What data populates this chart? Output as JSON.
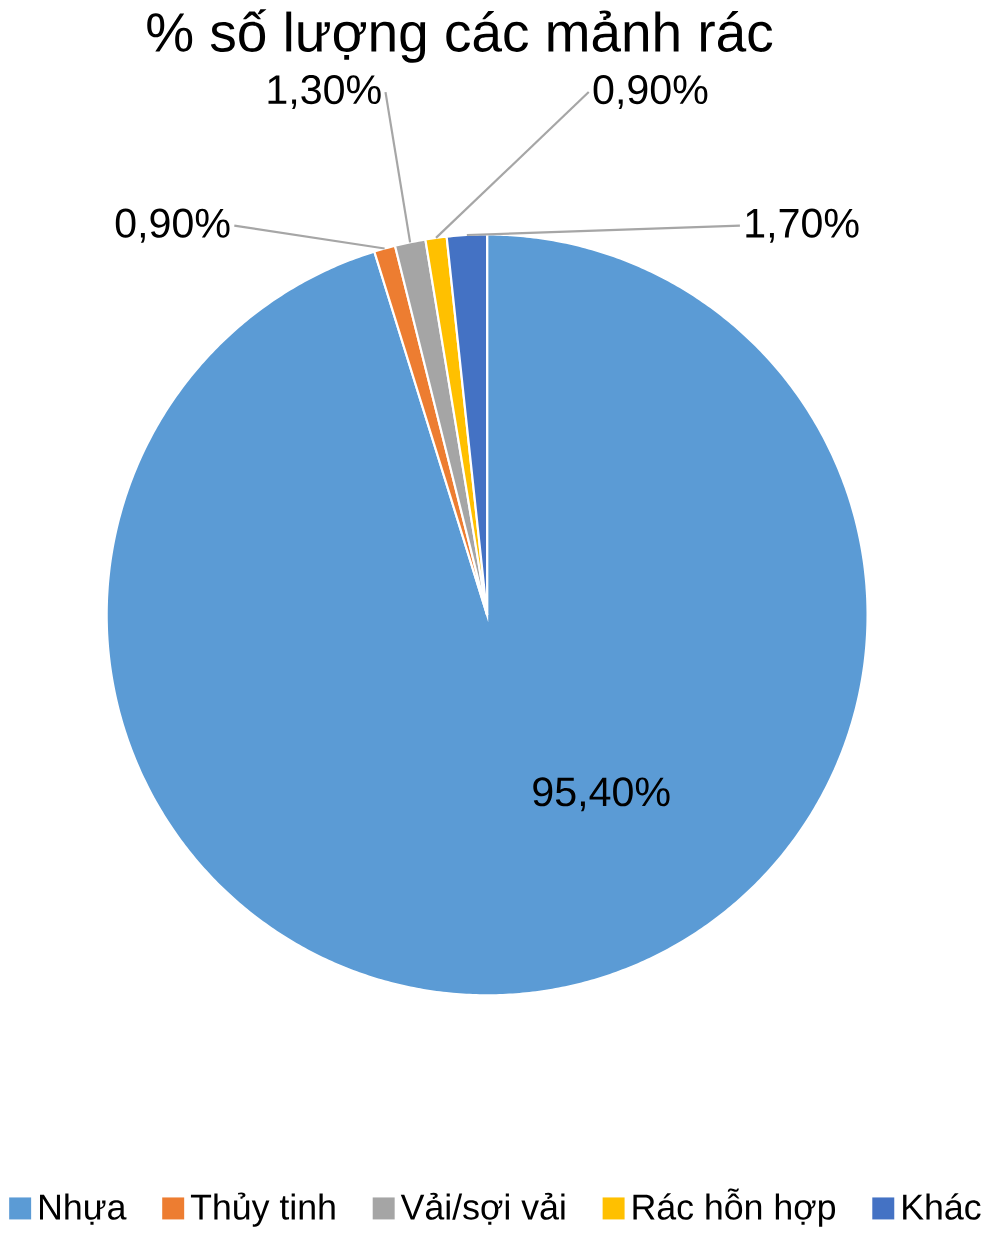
{
  "chart_data": {
    "type": "pie",
    "title": "% số lượng các mảnh rác",
    "categories": [
      "Nhựa",
      "Thủy tinh",
      "Vải/sợi vải",
      "Rác hỗn hợp",
      "Khác"
    ],
    "values": [
      95.4,
      0.9,
      1.3,
      0.9,
      1.7
    ],
    "value_labels": [
      "95,40%",
      "0,90%",
      "1,30%",
      "0,90%",
      "1,70%"
    ],
    "colors": [
      "#5b9bd5",
      "#ed7d31",
      "#a5a5a5",
      "#ffc000",
      "#4472c4"
    ],
    "legend": "bottom"
  }
}
